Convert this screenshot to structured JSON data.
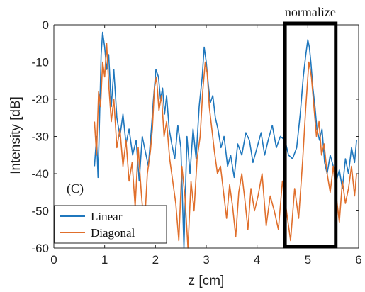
{
  "chart_data": {
    "type": "line",
    "panel_label": "(C)",
    "xlabel": "z [cm]",
    "ylabel": "Intensity [dB]",
    "xlim": [
      0,
      6
    ],
    "ylim": [
      -60,
      0
    ],
    "xticks": [
      0,
      1,
      2,
      3,
      4,
      5,
      6
    ],
    "yticks": [
      0,
      -10,
      -20,
      -30,
      -40,
      -50,
      -60
    ],
    "grid": false,
    "legend_position": "bottom-left",
    "annotation": {
      "text": "normalize",
      "box_x_range": [
        4.55,
        5.55
      ]
    },
    "series": [
      {
        "name": "Linear",
        "color": "#1f77bd",
        "x": [
          0.8,
          0.84,
          0.87,
          0.9,
          0.93,
          0.96,
          1.0,
          1.04,
          1.08,
          1.13,
          1.18,
          1.24,
          1.3,
          1.36,
          1.42,
          1.48,
          1.55,
          1.62,
          1.68,
          1.74,
          1.8,
          1.86,
          1.92,
          1.96,
          2.01,
          2.06,
          2.1,
          2.14,
          2.18,
          2.22,
          2.27,
          2.32,
          2.38,
          2.44,
          2.5,
          2.56,
          2.62,
          2.68,
          2.74,
          2.8,
          2.86,
          2.92,
          2.96,
          3.0,
          3.04,
          3.08,
          3.13,
          3.18,
          3.23,
          3.29,
          3.35,
          3.42,
          3.48,
          3.55,
          3.62,
          3.7,
          3.78,
          3.85,
          3.92,
          4.0,
          4.08,
          4.15,
          4.22,
          4.3,
          4.38,
          4.46,
          4.55,
          4.62,
          4.7,
          4.78,
          4.85,
          4.91,
          4.96,
          5.0,
          5.03,
          5.06,
          5.1,
          5.14,
          5.18,
          5.23,
          5.28,
          5.33,
          5.38,
          5.44,
          5.5,
          5.56,
          5.62,
          5.68,
          5.74,
          5.8,
          5.86,
          5.92,
          5.96
        ],
        "values": [
          -38,
          -30,
          -41,
          -25,
          -8,
          -2,
          -6,
          -12,
          -8,
          -22,
          -12,
          -25,
          -30,
          -24,
          -32,
          -28,
          -35,
          -31,
          -42,
          -30,
          -34,
          -38,
          -28,
          -20,
          -12,
          -14,
          -20,
          -17,
          -24,
          -19,
          -28,
          -32,
          -36,
          -27,
          -33,
          -60,
          -30,
          -40,
          -28,
          -36,
          -22,
          -14,
          -6,
          -10,
          -16,
          -21,
          -19,
          -25,
          -28,
          -33,
          -30,
          -38,
          -35,
          -41,
          -32,
          -35,
          -29,
          -31,
          -37,
          -33,
          -29,
          -35,
          -31,
          -27,
          -33,
          -30,
          -31,
          -35,
          -36,
          -33,
          -24,
          -14,
          -8,
          -4,
          -6,
          -10,
          -17,
          -22,
          -28,
          -31,
          -28,
          -37,
          -40,
          -35,
          -38,
          -42,
          -39,
          -44,
          -36,
          -40,
          -33,
          -37,
          -31
        ]
      },
      {
        "name": "Diagonal",
        "color": "#e06f2c",
        "x": [
          0.8,
          0.84,
          0.88,
          0.92,
          0.96,
          1.0,
          1.04,
          1.08,
          1.13,
          1.18,
          1.24,
          1.3,
          1.36,
          1.42,
          1.48,
          1.54,
          1.6,
          1.66,
          1.72,
          1.78,
          1.84,
          1.9,
          1.94,
          1.98,
          2.02,
          2.07,
          2.12,
          2.17,
          2.22,
          2.28,
          2.34,
          2.4,
          2.46,
          2.52,
          2.58,
          2.64,
          2.7,
          2.76,
          2.82,
          2.88,
          2.93,
          2.98,
          3.02,
          3.06,
          3.11,
          3.16,
          3.22,
          3.28,
          3.34,
          3.4,
          3.46,
          3.52,
          3.58,
          3.64,
          3.7,
          3.76,
          3.82,
          3.88,
          3.95,
          4.02,
          4.1,
          4.18,
          4.26,
          4.34,
          4.42,
          4.5,
          4.58,
          4.66,
          4.74,
          4.82,
          4.9,
          4.96,
          5.02,
          5.07,
          5.12,
          5.17,
          5.22,
          5.27,
          5.32,
          5.38,
          5.44,
          5.5,
          5.56,
          5.62,
          5.68,
          5.74,
          5.8,
          5.86,
          5.92,
          5.96
        ],
        "values": [
          -26,
          -35,
          -18,
          -22,
          -10,
          -14,
          -5,
          -16,
          -26,
          -20,
          -33,
          -28,
          -38,
          -31,
          -42,
          -37,
          -49,
          -33,
          -45,
          -55,
          -40,
          -34,
          -28,
          -17,
          -14,
          -23,
          -19,
          -30,
          -26,
          -36,
          -42,
          -48,
          -58,
          -38,
          -46,
          -60,
          -42,
          -50,
          -36,
          -30,
          -18,
          -10,
          -13,
          -22,
          -28,
          -34,
          -40,
          -38,
          -45,
          -52,
          -43,
          -49,
          -57,
          -45,
          -40,
          -47,
          -55,
          -44,
          -50,
          -46,
          -40,
          -54,
          -46,
          -50,
          -55,
          -42,
          -50,
          -58,
          -44,
          -52,
          -36,
          -22,
          -10,
          -14,
          -22,
          -30,
          -26,
          -35,
          -32,
          -40,
          -45,
          -38,
          -46,
          -53,
          -42,
          -48,
          -44,
          -38,
          -46,
          -40
        ]
      }
    ]
  }
}
